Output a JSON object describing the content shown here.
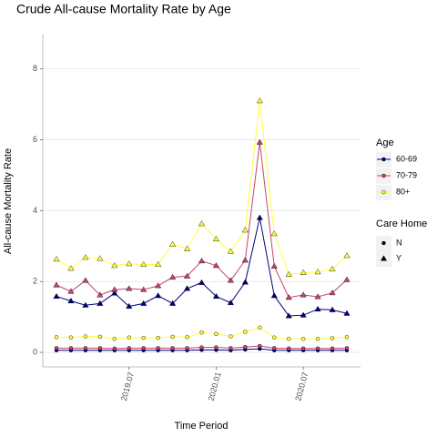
{
  "chart_data": {
    "type": "line",
    "title": "Crude All-cause Mortality Rate by Age",
    "x_label": "Time Period",
    "y_label": "All-cause Mortality Rate",
    "categories": [
      null,
      null,
      null,
      null,
      null,
      "2019.07",
      null,
      null,
      null,
      null,
      null,
      "2020.01",
      null,
      null,
      null,
      null,
      null,
      "2020.07",
      null,
      null,
      null
    ],
    "ylim": [
      -0.41,
      8.97
    ],
    "yticks": [
      0,
      2,
      4,
      6,
      8
    ],
    "grid": true,
    "legend_titles": {
      "age": "Age",
      "care_home": "Care Home"
    },
    "series": [
      {
        "age": "60-69",
        "care_home": "N",
        "color": "#00007f",
        "marker": "circle",
        "values": [
          0.06,
          0.06,
          0.06,
          0.06,
          0.06,
          0.06,
          0.06,
          0.06,
          0.06,
          0.06,
          0.07,
          0.07,
          0.06,
          0.08,
          0.1,
          0.06,
          0.06,
          0.06,
          0.06,
          0.06,
          0.06
        ]
      },
      {
        "age": "70-79",
        "care_home": "N",
        "color": "#c4446f",
        "marker": "circle",
        "values": [
          0.12,
          0.12,
          0.12,
          0.12,
          0.11,
          0.12,
          0.12,
          0.12,
          0.12,
          0.12,
          0.14,
          0.14,
          0.12,
          0.15,
          0.18,
          0.12,
          0.11,
          0.11,
          0.11,
          0.11,
          0.12
        ]
      },
      {
        "age": "80+",
        "care_home": "N",
        "color": "#ffff3c",
        "marker": "circle",
        "values": [
          0.43,
          0.42,
          0.45,
          0.44,
          0.38,
          0.42,
          0.41,
          0.41,
          0.44,
          0.43,
          0.56,
          0.52,
          0.45,
          0.58,
          0.7,
          0.42,
          0.38,
          0.38,
          0.38,
          0.4,
          0.43
        ]
      },
      {
        "age": "60-69",
        "care_home": "Y",
        "color": "#00007f",
        "marker": "triangle",
        "values": [
          1.58,
          1.45,
          1.33,
          1.38,
          1.67,
          1.3,
          1.38,
          1.6,
          1.38,
          1.8,
          1.97,
          1.58,
          1.4,
          1.98,
          3.8,
          1.6,
          1.03,
          1.05,
          1.22,
          1.2,
          1.1
        ]
      },
      {
        "age": "70-79",
        "care_home": "Y",
        "color": "#c4446f",
        "marker": "triangle",
        "values": [
          1.9,
          1.72,
          2.03,
          1.62,
          1.77,
          1.8,
          1.77,
          1.88,
          2.12,
          2.15,
          2.58,
          2.45,
          2.03,
          2.6,
          5.93,
          2.43,
          1.55,
          1.62,
          1.57,
          1.68,
          2.05
        ]
      },
      {
        "age": "80+",
        "care_home": "Y",
        "color": "#ffff3c",
        "marker": "triangle",
        "values": [
          2.63,
          2.37,
          2.68,
          2.65,
          2.45,
          2.5,
          2.48,
          2.48,
          3.05,
          2.92,
          3.63,
          3.2,
          2.85,
          3.45,
          7.1,
          3.35,
          2.2,
          2.25,
          2.27,
          2.35,
          2.73
        ]
      }
    ]
  }
}
